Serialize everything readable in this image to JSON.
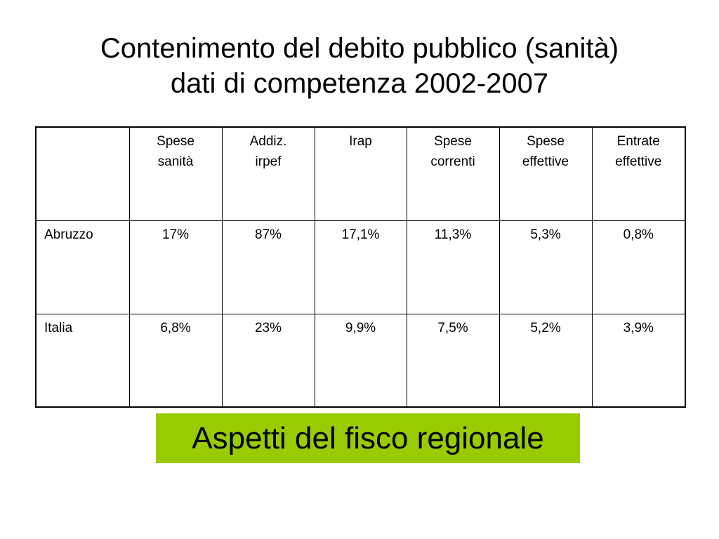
{
  "title": {
    "line1": "Contenimento del debito pubblico (sanità)",
    "line2": "dati di competenza 2002-2007"
  },
  "table": {
    "headers": [
      {
        "line1": "",
        "line2": ""
      },
      {
        "line1": "Spese",
        "line2": "sanità"
      },
      {
        "line1": "Addiz.",
        "line2": "irpef"
      },
      {
        "line1": "Irap",
        "line2": ""
      },
      {
        "line1": "Spese",
        "line2": "correnti"
      },
      {
        "line1": "Spese",
        "line2": "effettive"
      },
      {
        "line1": "Entrate",
        "line2": "effettive"
      }
    ],
    "rows": [
      {
        "label": "Abruzzo",
        "values": [
          "17%",
          "87%",
          "17,1%",
          "11,3%",
          "5,3%",
          "0,8%"
        ]
      },
      {
        "label": "Italia",
        "values": [
          "6,8%",
          "23%",
          "9,9%",
          "7,5%",
          "5,2%",
          "3,9%"
        ]
      }
    ]
  },
  "footer": {
    "label": "Aspetti del fisco regionale",
    "background": "#99cc00"
  }
}
